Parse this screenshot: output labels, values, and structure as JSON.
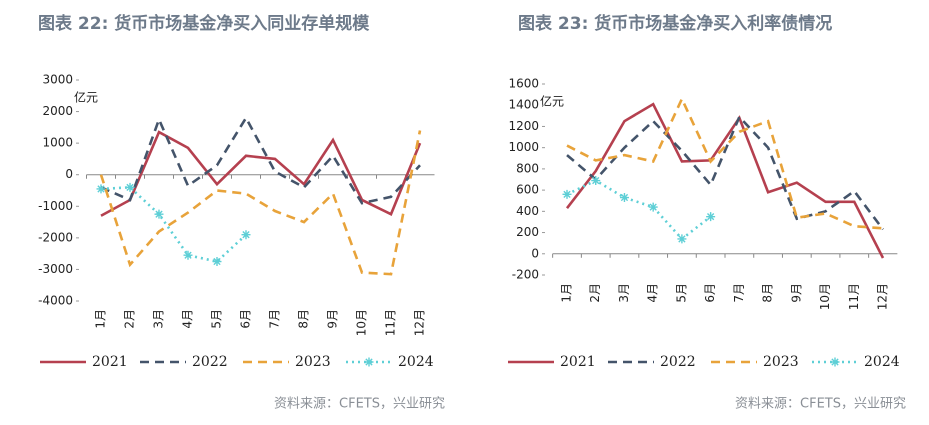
{
  "chart_data": [
    {
      "type": "line",
      "title": "图表 22: 货币市场基金净买入同业存单规模",
      "y_unit": "亿元",
      "categories": [
        "1月",
        "2月",
        "3月",
        "4月",
        "5月",
        "6月",
        "7月",
        "8月",
        "9月",
        "10月",
        "11月",
        "12月"
      ],
      "ylim": [
        -4000,
        3000
      ],
      "yticks": [
        -4000,
        -3000,
        -2000,
        -1000,
        0,
        1000,
        2000,
        3000
      ],
      "series": [
        {
          "name": "2021",
          "color": "#b5404f",
          "style": "solid",
          "values": [
            -1300,
            -800,
            1350,
            850,
            -300,
            600,
            500,
            -300,
            1100,
            -800,
            -1250,
            1000
          ]
        },
        {
          "name": "2022",
          "color": "#44546a",
          "style": "dashed",
          "values": [
            -400,
            -800,
            1750,
            -350,
            300,
            1800,
            100,
            -400,
            600,
            -900,
            -700,
            300
          ]
        },
        {
          "name": "2023",
          "color": "#e8a33a",
          "style": "dashed",
          "values": [
            0,
            -2850,
            -1800,
            -1200,
            -500,
            -600,
            -1150,
            -1500,
            -600,
            -3100,
            -3150,
            1400
          ]
        },
        {
          "name": "2024",
          "color": "#5ecfd6",
          "style": "dotted",
          "marker": "star",
          "values": [
            -450,
            -400,
            -1250,
            -2550,
            -2750,
            -1900,
            null,
            null,
            null,
            null,
            null,
            null
          ]
        }
      ],
      "source": "资料来源：CFETS，兴业研究"
    },
    {
      "type": "line",
      "title": "图表 23: 货币市场基金净买入利率债情况",
      "y_unit": "亿元",
      "categories": [
        "1月",
        "2月",
        "3月",
        "4月",
        "5月",
        "6月",
        "7月",
        "8月",
        "9月",
        "10月",
        "11月",
        "12月"
      ],
      "ylim": [
        -200,
        1600
      ],
      "yticks": [
        -200,
        0,
        200,
        400,
        600,
        800,
        1000,
        1200,
        1400,
        1600
      ],
      "series": [
        {
          "name": "2021",
          "color": "#b5404f",
          "style": "solid",
          "values": [
            430,
            780,
            1250,
            1410,
            870,
            880,
            1280,
            580,
            670,
            490,
            490,
            -40
          ]
        },
        {
          "name": "2022",
          "color": "#44546a",
          "style": "dashed",
          "values": [
            930,
            700,
            1000,
            1250,
            970,
            650,
            1290,
            1000,
            330,
            400,
            590,
            230
          ]
        },
        {
          "name": "2023",
          "color": "#e8a33a",
          "style": "dashed",
          "values": [
            1020,
            880,
            930,
            870,
            1460,
            870,
            1150,
            1250,
            340,
            380,
            260,
            240
          ]
        },
        {
          "name": "2024",
          "color": "#5ecfd6",
          "style": "dotted",
          "marker": "star",
          "values": [
            560,
            690,
            530,
            440,
            140,
            350,
            null,
            null,
            null,
            null,
            null,
            null
          ]
        }
      ],
      "source": "资料来源：CFETS，兴业研究"
    }
  ]
}
